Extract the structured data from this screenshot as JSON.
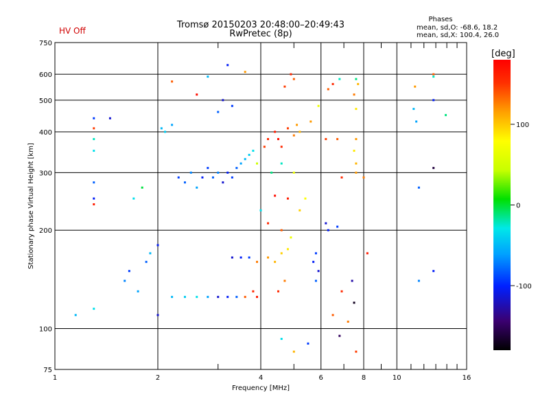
{
  "status": {
    "hv": "HV Off"
  },
  "header": {
    "title_line1": "Tromsø 20150203 20:48:00–20:49:43",
    "title_line2": "RwPretec (8p)",
    "phase_title": "Phases",
    "phase_o": "mean, sd,O: -68.6, 18.2",
    "phase_x": "mean, sd,X: 100.4, 26.0"
  },
  "chart_data": {
    "type": "scatter",
    "xlabel": "Frequency [MHz]",
    "ylabel": "Stationary phase Virtual Height [km]",
    "x_scale": "log",
    "y_scale": "log",
    "xlim": [
      1,
      16
    ],
    "ylim": [
      75,
      750
    ],
    "grid": true,
    "x_major_ticks": [
      1,
      2,
      4,
      6,
      8,
      10,
      16
    ],
    "x_tick_labels": [
      "1",
      "2",
      "4",
      "6",
      "8",
      "10",
      "16"
    ],
    "y_ticks": [
      75,
      100,
      200,
      300,
      400,
      500,
      600,
      750
    ],
    "y_tick_labels": [
      "75",
      "100",
      "200",
      "300",
      "400",
      "500",
      "600",
      "750"
    ],
    "colorbar": {
      "label": "[deg]",
      "range": [
        -180,
        180
      ],
      "ticks": [
        100,
        0,
        -100
      ],
      "tick_labels": [
        "100",
        "0",
        "-100"
      ],
      "colors": [
        "#000000",
        "#3b0070",
        "#0020ff",
        "#00a0ff",
        "#00e8e8",
        "#00e000",
        "#c8ff00",
        "#ffff00",
        "#ffa000",
        "#ff3000",
        "#ff0000"
      ]
    },
    "points": [
      [
        1.3,
        440,
        -100
      ],
      [
        1.3,
        410,
        140
      ],
      [
        1.3,
        380,
        -30
      ],
      [
        1.3,
        350,
        -40
      ],
      [
        1.3,
        280,
        -90
      ],
      [
        1.3,
        250,
        -110
      ],
      [
        1.3,
        240,
        160
      ],
      [
        1.3,
        115,
        -40
      ],
      [
        1.15,
        110,
        -60
      ],
      [
        1.45,
        440,
        -120
      ],
      [
        1.8,
        270,
        -10
      ],
      [
        1.7,
        250,
        -40
      ],
      [
        1.6,
        140,
        -80
      ],
      [
        1.65,
        150,
        -100
      ],
      [
        1.75,
        130,
        -70
      ],
      [
        1.85,
        160,
        -90
      ],
      [
        1.9,
        170,
        -60
      ],
      [
        2.0,
        180,
        -110
      ],
      [
        2.0,
        110,
        -120
      ],
      [
        2.05,
        410,
        -60
      ],
      [
        2.1,
        400,
        -50
      ],
      [
        2.2,
        420,
        -70
      ],
      [
        2.3,
        290,
        -100
      ],
      [
        2.4,
        280,
        -90
      ],
      [
        2.5,
        300,
        -80
      ],
      [
        2.6,
        270,
        -70
      ],
      [
        2.7,
        290,
        -110
      ],
      [
        2.8,
        310,
        -100
      ],
      [
        2.9,
        290,
        -90
      ],
      [
        3.0,
        300,
        -80
      ],
      [
        3.1,
        280,
        -120
      ],
      [
        3.2,
        300,
        -110
      ],
      [
        3.3,
        290,
        -100
      ],
      [
        3.4,
        310,
        -90
      ],
      [
        3.5,
        320,
        -70
      ],
      [
        3.6,
        330,
        -60
      ],
      [
        3.7,
        340,
        -50
      ],
      [
        3.8,
        350,
        -40
      ],
      [
        2.2,
        125,
        -60
      ],
      [
        2.4,
        125,
        -50
      ],
      [
        2.6,
        125,
        -40
      ],
      [
        2.8,
        125,
        -70
      ],
      [
        3.0,
        125,
        -120
      ],
      [
        3.2,
        125,
        -110
      ],
      [
        3.4,
        125,
        -90
      ],
      [
        3.6,
        125,
        130
      ],
      [
        3.8,
        130,
        150
      ],
      [
        3.9,
        125,
        160
      ],
      [
        3.3,
        165,
        -120
      ],
      [
        3.5,
        165,
        -110
      ],
      [
        3.7,
        165,
        -100
      ],
      [
        3.9,
        160,
        120
      ],
      [
        4.2,
        165,
        110
      ],
      [
        4.4,
        160,
        100
      ],
      [
        4.6,
        170,
        90
      ],
      [
        4.8,
        175,
        80
      ],
      [
        4.9,
        190,
        60
      ],
      [
        4.5,
        130,
        150
      ],
      [
        4.7,
        140,
        120
      ],
      [
        4.6,
        200,
        130
      ],
      [
        4.1,
        360,
        140
      ],
      [
        4.2,
        380,
        150
      ],
      [
        4.4,
        400,
        160
      ],
      [
        4.5,
        380,
        170
      ],
      [
        4.6,
        360,
        150
      ],
      [
        4.8,
        410,
        140
      ],
      [
        5.0,
        390,
        120
      ],
      [
        5.1,
        420,
        110
      ],
      [
        5.2,
        400,
        100
      ],
      [
        4.9,
        600,
        150
      ],
      [
        4.7,
        550,
        140
      ],
      [
        5.0,
        580,
        130
      ],
      [
        3.2,
        640,
        -110
      ],
      [
        3.1,
        500,
        -120
      ],
      [
        3.3,
        480,
        -100
      ],
      [
        3.0,
        460,
        -90
      ],
      [
        2.8,
        590,
        -60
      ],
      [
        2.6,
        520,
        170
      ],
      [
        2.2,
        570,
        130
      ],
      [
        3.6,
        610,
        110
      ],
      [
        5.8,
        170,
        -100
      ],
      [
        5.9,
        150,
        -120
      ],
      [
        5.7,
        160,
        -110
      ],
      [
        5.8,
        140,
        -90
      ],
      [
        6.2,
        210,
        -120
      ],
      [
        6.3,
        200,
        -110
      ],
      [
        6.7,
        205,
        -100
      ],
      [
        6.5,
        110,
        130
      ],
      [
        6.9,
        130,
        150
      ],
      [
        6.8,
        95,
        -150
      ],
      [
        7.4,
        140,
        -130
      ],
      [
        7.5,
        120,
        -170
      ],
      [
        7.6,
        300,
        110
      ],
      [
        7.6,
        320,
        100
      ],
      [
        7.5,
        350,
        80
      ],
      [
        7.6,
        380,
        110
      ],
      [
        7.6,
        470,
        80
      ],
      [
        7.5,
        520,
        120
      ],
      [
        7.7,
        560,
        100
      ],
      [
        7.6,
        580,
        -20
      ],
      [
        7.6,
        85,
        140
      ],
      [
        7.2,
        105,
        120
      ],
      [
        5.5,
        90,
        -100
      ],
      [
        6.3,
        540,
        130
      ],
      [
        6.5,
        560,
        150
      ],
      [
        5.6,
        430,
        110
      ],
      [
        5.9,
        480,
        60
      ],
      [
        6.2,
        380,
        140
      ],
      [
        6.8,
        580,
        -30
      ],
      [
        6.7,
        380,
        130
      ],
      [
        6.9,
        290,
        150
      ],
      [
        8.0,
        290,
        120
      ],
      [
        8.2,
        170,
        160
      ],
      [
        11.3,
        550,
        110
      ],
      [
        12.8,
        600,
        130
      ],
      [
        12.8,
        590,
        -30
      ],
      [
        12.8,
        500,
        -110
      ],
      [
        11.4,
        430,
        -70
      ],
      [
        12.8,
        310,
        -160
      ],
      [
        11.6,
        270,
        -90
      ],
      [
        11.6,
        140,
        -80
      ],
      [
        12.8,
        150,
        -110
      ],
      [
        13.9,
        450,
        -20
      ],
      [
        11.2,
        470,
        -60
      ],
      [
        4.6,
        93,
        -40
      ],
      [
        5.0,
        85,
        100
      ],
      [
        4.8,
        250,
        160
      ],
      [
        4.4,
        255,
        170
      ],
      [
        4.2,
        210,
        150
      ],
      [
        4.0,
        230,
        -40
      ],
      [
        3.9,
        320,
        40
      ],
      [
        4.3,
        300,
        -20
      ],
      [
        4.6,
        320,
        -30
      ],
      [
        5.0,
        300,
        60
      ],
      [
        5.2,
        230,
        90
      ],
      [
        5.4,
        250,
        70
      ]
    ]
  }
}
